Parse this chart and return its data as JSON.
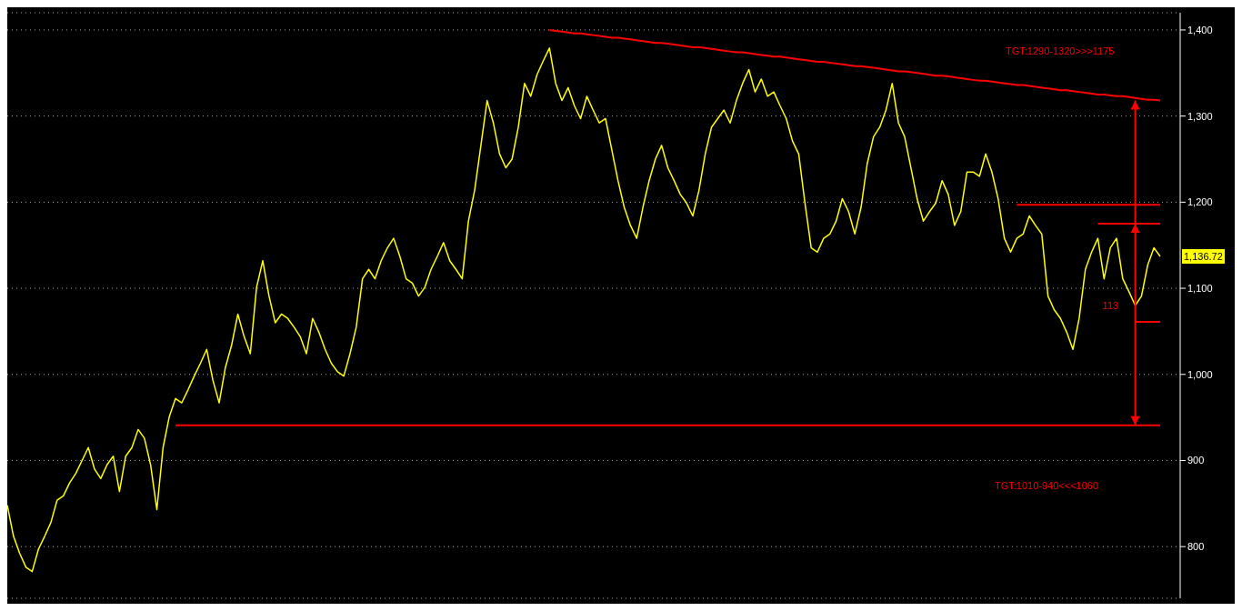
{
  "chart_data": {
    "type": "line",
    "ylim": [
      740,
      1420
    ],
    "categories": [
      null,
      null,
      null,
      null,
      null,
      null,
      null,
      null,
      null,
      null,
      null,
      null,
      null,
      null,
      null,
      null,
      null,
      null,
      null,
      null,
      null,
      null,
      null,
      null,
      null,
      null,
      null,
      null,
      null,
      null,
      null,
      null,
      null,
      null,
      null,
      null,
      null,
      null,
      null,
      null,
      null,
      null,
      null,
      null,
      null,
      null,
      null,
      null,
      null,
      null,
      null,
      null,
      null,
      null,
      null,
      null,
      null,
      null,
      null,
      null,
      null,
      null,
      null,
      null,
      null,
      null,
      null,
      null,
      null,
      null,
      null,
      null,
      null,
      null,
      null,
      null,
      null,
      null,
      null,
      null,
      null,
      null,
      null,
      null,
      null,
      null,
      null,
      null,
      null,
      null,
      null,
      null,
      null,
      null,
      null,
      null,
      null,
      null,
      null,
      null,
      null,
      null,
      null,
      null,
      null,
      null,
      null,
      null,
      null,
      null,
      null,
      null,
      null,
      null,
      null,
      null,
      null,
      null,
      null,
      null,
      null,
      null,
      null,
      null,
      null,
      null,
      null,
      null,
      null,
      null,
      null,
      null,
      null,
      null,
      null,
      null,
      null,
      null,
      null,
      null,
      null,
      null,
      null,
      null,
      null,
      null,
      null,
      null,
      null,
      null,
      null,
      null,
      null,
      null,
      null,
      null,
      null,
      null,
      null,
      null,
      null,
      null,
      null,
      null,
      null,
      null,
      null,
      null,
      null,
      null,
      null,
      null,
      null,
      null,
      null,
      null,
      null,
      null,
      null,
      null,
      null,
      null,
      null,
      null,
      null,
      null
    ],
    "yticks": [
      {
        "value": 800,
        "label": "800"
      },
      {
        "value": 900,
        "label": "900"
      },
      {
        "value": 1000,
        "label": "1,000"
      },
      {
        "value": 1100,
        "label": "1,100"
      },
      {
        "value": 1200,
        "label": "1,200"
      },
      {
        "value": 1300,
        "label": "1,300"
      },
      {
        "value": 1400,
        "label": "1,400"
      }
    ],
    "grid": "y",
    "tick_labels": "y",
    "series": [
      {
        "color": "#ffff00",
        "values": [
          848,
          812,
          792,
          776,
          771,
          797,
          812,
          828,
          854,
          859,
          874,
          885,
          900,
          915,
          890,
          879,
          895,
          905,
          864,
          905,
          915,
          936,
          926,
          895,
          843,
          915,
          951,
          972,
          967,
          982,
          998,
          1013,
          1029,
          993,
          967,
          1008,
          1034,
          1070,
          1044,
          1024,
          1101,
          1132,
          1091,
          1060,
          1070,
          1065,
          1055,
          1044,
          1024,
          1065,
          1049,
          1029,
          1013,
          1003,
          998,
          1024,
          1055,
          1111,
          1122,
          1111,
          1132,
          1147,
          1158,
          1137,
          1111,
          1106,
          1091,
          1101,
          1122,
          1137,
          1153,
          1132,
          1122,
          1111,
          1178,
          1214,
          1266,
          1318,
          1292,
          1256,
          1240,
          1250,
          1287,
          1338,
          1323,
          1348,
          1364,
          1379,
          1338,
          1318,
          1333,
          1312,
          1297,
          1323,
          1307,
          1292,
          1297,
          1261,
          1225,
          1194,
          1173,
          1158,
          1194,
          1225,
          1250,
          1266,
          1240,
          1225,
          1209,
          1199,
          1184,
          1214,
          1256,
          1287,
          1297,
          1307,
          1292,
          1318,
          1338,
          1354,
          1328,
          1343,
          1323,
          1328,
          1312,
          1297,
          1271,
          1256,
          1199,
          1147,
          1142,
          1158,
          1163,
          1178,
          1204,
          1189,
          1163,
          1194,
          1245,
          1276,
          1287,
          1307,
          1338,
          1292,
          1276,
          1240,
          1204,
          1178,
          1189,
          1199,
          1225,
          1209,
          1173,
          1189,
          1235,
          1235,
          1230,
          1256,
          1235,
          1204,
          1158,
          1142,
          1158,
          1163,
          1184,
          1173,
          1163,
          1091,
          1075,
          1065,
          1049,
          1029,
          1065,
          1122,
          1142,
          1158,
          1111,
          1147,
          1158,
          1111,
          1096,
          1080,
          1091,
          1127,
          1147,
          1137
        ]
      },
      {
        "color": "#ff0000",
        "values": [
          null,
          null,
          null,
          null,
          null,
          null,
          null,
          null,
          null,
          null,
          null,
          null,
          null,
          null,
          null,
          null,
          null,
          null,
          null,
          null,
          null,
          null,
          null,
          null,
          null,
          null,
          null,
          null,
          null,
          null,
          null,
          null,
          null,
          null,
          null,
          null,
          null,
          null,
          null,
          null,
          null,
          null,
          null,
          null,
          null,
          null,
          null,
          null,
          null,
          null,
          null,
          null,
          null,
          null,
          null,
          null,
          null,
          null,
          null,
          null,
          null,
          null,
          null,
          null,
          null,
          null,
          null,
          null,
          null,
          null,
          null,
          null,
          null,
          null,
          null,
          null,
          null,
          null,
          null,
          null,
          null,
          null,
          null,
          null,
          null,
          null,
          null,
          1400,
          1399,
          1398,
          1397,
          1396,
          1396,
          1395,
          1394,
          1393,
          1392,
          1391,
          1391,
          1390,
          1389,
          1388,
          1387,
          1386,
          1385,
          1385,
          1384,
          1383,
          1382,
          1381,
          1380,
          1380,
          1379,
          1378,
          1377,
          1376,
          1375,
          1374,
          1374,
          1373,
          1372,
          1371,
          1370,
          1369,
          1369,
          1368,
          1367,
          1366,
          1365,
          1364,
          1363,
          1363,
          1362,
          1361,
          1360,
          1359,
          1358,
          1358,
          1357,
          1356,
          1355,
          1354,
          1353,
          1352,
          1352,
          1351,
          1350,
          1349,
          1348,
          1347,
          1347,
          1346,
          1345,
          1344,
          1343,
          1342,
          1341,
          1341,
          1340,
          1339,
          1338,
          1337,
          1336,
          1336,
          1335,
          1334,
          1333,
          1332,
          1331,
          1330,
          1330,
          1329,
          1328,
          1327,
          1326,
          1325,
          1325,
          1324,
          1323,
          1323,
          1322,
          1321,
          1320,
          1319,
          1319,
          1318
        ]
      },
      {
        "color": "#ff0000",
        "values": [
          null,
          null,
          null,
          null,
          null,
          null,
          null,
          null,
          null,
          null,
          null,
          null,
          null,
          null,
          null,
          null,
          null,
          null,
          null,
          null,
          null,
          null,
          null,
          null,
          null,
          null,
          null,
          941,
          941,
          941,
          941,
          941,
          941,
          941,
          941,
          941,
          941,
          941,
          941,
          941,
          941,
          941,
          941,
          941,
          941,
          941,
          941,
          941,
          941,
          941,
          941,
          941,
          941,
          941,
          941,
          941,
          941,
          941,
          941,
          941,
          941,
          941,
          941,
          941,
          941,
          941,
          941,
          941,
          941,
          941,
          941,
          941,
          941,
          941,
          941,
          941,
          941,
          941,
          941,
          941,
          941,
          941,
          941,
          941,
          941,
          941,
          941,
          941,
          941,
          941,
          941,
          941,
          941,
          941,
          941,
          941,
          941,
          941,
          941,
          941,
          941,
          941,
          941,
          941,
          941,
          941,
          941,
          941,
          941,
          941,
          941,
          941,
          941,
          941,
          941,
          941,
          941,
          941,
          941,
          941,
          941,
          941,
          941,
          941,
          941,
          941,
          941,
          941,
          941,
          941,
          941,
          941,
          941,
          941,
          941,
          941,
          941,
          941,
          941,
          941,
          941,
          941,
          941,
          941,
          941,
          941,
          941,
          941,
          941,
          941,
          941,
          941,
          941,
          941,
          941,
          941,
          941,
          941,
          941,
          941,
          941,
          941,
          941,
          941,
          941,
          941,
          941,
          941,
          941,
          941,
          941,
          941,
          941,
          941,
          941,
          941,
          941,
          941,
          941,
          941,
          941,
          941,
          941,
          941,
          941,
          941
        ]
      },
      {
        "color": "#ff0000",
        "values": [
          null,
          null,
          null,
          null,
          null,
          null,
          null,
          null,
          null,
          null,
          null,
          null,
          null,
          null,
          null,
          null,
          null,
          null,
          null,
          null,
          null,
          null,
          null,
          null,
          null,
          null,
          null,
          null,
          null,
          null,
          null,
          null,
          null,
          null,
          null,
          null,
          null,
          null,
          null,
          null,
          null,
          null,
          null,
          null,
          null,
          null,
          null,
          null,
          null,
          null,
          null,
          null,
          null,
          null,
          null,
          null,
          null,
          null,
          null,
          null,
          null,
          null,
          null,
          null,
          null,
          null,
          null,
          null,
          null,
          null,
          null,
          null,
          null,
          null,
          null,
          null,
          null,
          null,
          null,
          null,
          null,
          null,
          null,
          null,
          null,
          null,
          null,
          null,
          null,
          null,
          null,
          null,
          null,
          null,
          null,
          null,
          null,
          null,
          null,
          null,
          null,
          null,
          null,
          null,
          null,
          null,
          null,
          null,
          null,
          null,
          null,
          null,
          null,
          null,
          null,
          null,
          null,
          null,
          null,
          null,
          null,
          null,
          null,
          null,
          null,
          null,
          null,
          null,
          null,
          null,
          null,
          null,
          null,
          null,
          null,
          null,
          null,
          null,
          null,
          null,
          null,
          null,
          null,
          null,
          null,
          null,
          null,
          null,
          null,
          null,
          null,
          null,
          null,
          null,
          null,
          null,
          null,
          null,
          null,
          null,
          null,
          null,
          1197,
          1197,
          1197,
          1197,
          1197,
          1197,
          1197,
          1197,
          1197,
          1197,
          1197,
          1197,
          1197,
          1197,
          1197,
          1197,
          1197,
          1197,
          1197,
          1197,
          1197,
          1197,
          1197,
          1197
        ]
      },
      {
        "color": "#ff0000",
        "values": [
          null,
          null,
          null,
          null,
          null,
          null,
          null,
          null,
          null,
          null,
          null,
          null,
          null,
          null,
          null,
          null,
          null,
          null,
          null,
          null,
          null,
          null,
          null,
          null,
          null,
          null,
          null,
          null,
          null,
          null,
          null,
          null,
          null,
          null,
          null,
          null,
          null,
          null,
          null,
          null,
          null,
          null,
          null,
          null,
          null,
          null,
          null,
          null,
          null,
          null,
          null,
          null,
          null,
          null,
          null,
          null,
          null,
          null,
          null,
          null,
          null,
          null,
          null,
          null,
          null,
          null,
          null,
          null,
          null,
          null,
          null,
          null,
          null,
          null,
          null,
          null,
          null,
          null,
          null,
          null,
          null,
          null,
          null,
          null,
          null,
          null,
          null,
          null,
          null,
          null,
          null,
          null,
          null,
          null,
          null,
          null,
          null,
          null,
          null,
          null,
          null,
          null,
          null,
          null,
          null,
          null,
          null,
          null,
          null,
          null,
          null,
          null,
          null,
          null,
          null,
          null,
          null,
          null,
          null,
          null,
          null,
          null,
          null,
          null,
          null,
          null,
          null,
          null,
          null,
          null,
          null,
          null,
          null,
          null,
          null,
          null,
          null,
          null,
          null,
          null,
          null,
          null,
          null,
          null,
          null,
          null,
          null,
          null,
          null,
          null,
          null,
          null,
          null,
          null,
          null,
          null,
          null,
          null,
          null,
          null,
          null,
          null,
          null,
          null,
          null,
          null,
          null,
          null,
          null,
          null,
          null,
          null,
          null,
          null,
          null,
          1175,
          1175,
          1175,
          1175,
          1175,
          1175,
          1175,
          1175,
          1175,
          1175,
          1175
        ]
      },
      {
        "color": "#ff0000",
        "values": [
          null,
          null,
          null,
          null,
          null,
          null,
          null,
          null,
          null,
          null,
          null,
          null,
          null,
          null,
          null,
          null,
          null,
          null,
          null,
          null,
          null,
          null,
          null,
          null,
          null,
          null,
          null,
          null,
          null,
          null,
          null,
          null,
          null,
          null,
          null,
          null,
          null,
          null,
          null,
          null,
          null,
          null,
          null,
          null,
          null,
          null,
          null,
          null,
          null,
          null,
          null,
          null,
          null,
          null,
          null,
          null,
          null,
          null,
          null,
          null,
          null,
          null,
          null,
          null,
          null,
          null,
          null,
          null,
          null,
          null,
          null,
          null,
          null,
          null,
          null,
          null,
          null,
          null,
          null,
          null,
          null,
          null,
          null,
          null,
          null,
          null,
          null,
          null,
          null,
          null,
          null,
          null,
          null,
          null,
          null,
          null,
          null,
          null,
          null,
          null,
          null,
          null,
          null,
          null,
          null,
          null,
          null,
          null,
          null,
          null,
          null,
          null,
          null,
          null,
          null,
          null,
          null,
          null,
          null,
          null,
          null,
          null,
          null,
          null,
          null,
          null,
          null,
          null,
          null,
          null,
          null,
          null,
          null,
          null,
          null,
          null,
          null,
          null,
          null,
          null,
          null,
          null,
          null,
          null,
          null,
          null,
          null,
          null,
          null,
          null,
          null,
          null,
          null,
          null,
          null,
          null,
          null,
          null,
          null,
          null,
          null,
          null,
          null,
          null,
          null,
          null,
          null,
          null,
          null,
          null,
          null,
          null,
          null,
          null,
          null,
          null,
          null,
          null,
          null,
          null,
          null,
          1061,
          1061,
          1061,
          1061,
          1061
        ]
      }
    ],
    "annotations": [
      "TGT:1290-1320>>>1175",
      "TGT:1010-940<<<1060",
      "113",
      "1,136.72"
    ]
  }
}
